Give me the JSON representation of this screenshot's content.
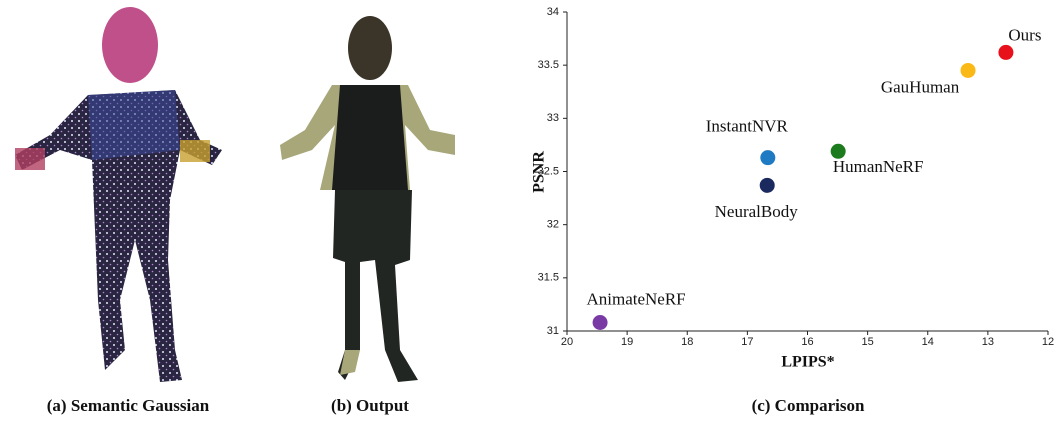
{
  "chart_data": {
    "type": "scatter",
    "x_label": "LPIPS*",
    "y_label": "PSNR",
    "xlim": [
      20,
      12
    ],
    "xticks": [
      20,
      19,
      18,
      17,
      16,
      15,
      14,
      13,
      12
    ],
    "ylim": [
      31,
      34
    ],
    "yticks": [
      31,
      31.5,
      32,
      32.5,
      33,
      33.5,
      34
    ],
    "series": [
      {
        "name": "Ours",
        "color": "#e8101a",
        "x": [
          12.7
        ],
        "values": [
          33.62
        ]
      },
      {
        "name": "GauHuman",
        "color": "#fbb917",
        "x": [
          13.33
        ],
        "values": [
          33.45
        ]
      },
      {
        "name": "HumanNeRF",
        "color": "#1c7b1c",
        "x": [
          15.49
        ],
        "values": [
          32.69
        ]
      },
      {
        "name": "InstantNVR",
        "color": "#1f7ac4",
        "x": [
          16.66
        ],
        "values": [
          32.63
        ]
      },
      {
        "name": "NeuralBody",
        "color": "#1b2a5e",
        "x": [
          16.67
        ],
        "values": [
          32.37
        ]
      },
      {
        "name": "AnimateNeRF",
        "color": "#7a3aa6",
        "x": [
          19.45
        ],
        "values": [
          31.08
        ]
      }
    ]
  },
  "captions": [
    "(a) Semantic Gaussian",
    "(b) Output",
    "(c) Comparison"
  ]
}
